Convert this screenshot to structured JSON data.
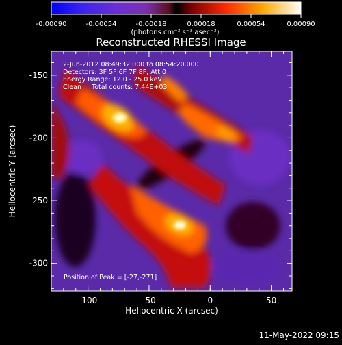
{
  "colorbar": {
    "ticks": [
      "-0.00090",
      "-0.00054",
      "-0.00018",
      "0.00018",
      "0.00054",
      "0.00090"
    ],
    "unit_label": "(photons cm⁻² s⁻¹ asec⁻²)"
  },
  "title": "Reconstructed RHESSI Image",
  "info": {
    "line1": "2-Jun-2012 08:49:32.000 to 08:54:20.000",
    "line2": "Detectors: 3F 5F 6F 7F 8F, Att 0",
    "line3": "Energy Range: 12.0 - 25.0 keV",
    "line4": "Clean     Total counts: 7.44E+03"
  },
  "peak_label": "Position of Peak = [-27,-271]",
  "x_axis": {
    "label": "Heliocentric X (arcsec)",
    "ticks": [
      "-100",
      "-50",
      "0",
      "50"
    ],
    "range": [
      -130,
      67
    ]
  },
  "y_axis": {
    "label": "Heliocentric Y (arcsec)",
    "ticks": [
      "-150",
      "-200",
      "-250",
      "-300"
    ],
    "range": [
      -322,
      -131
    ]
  },
  "timestamp": "11-May-2022 09:15"
}
